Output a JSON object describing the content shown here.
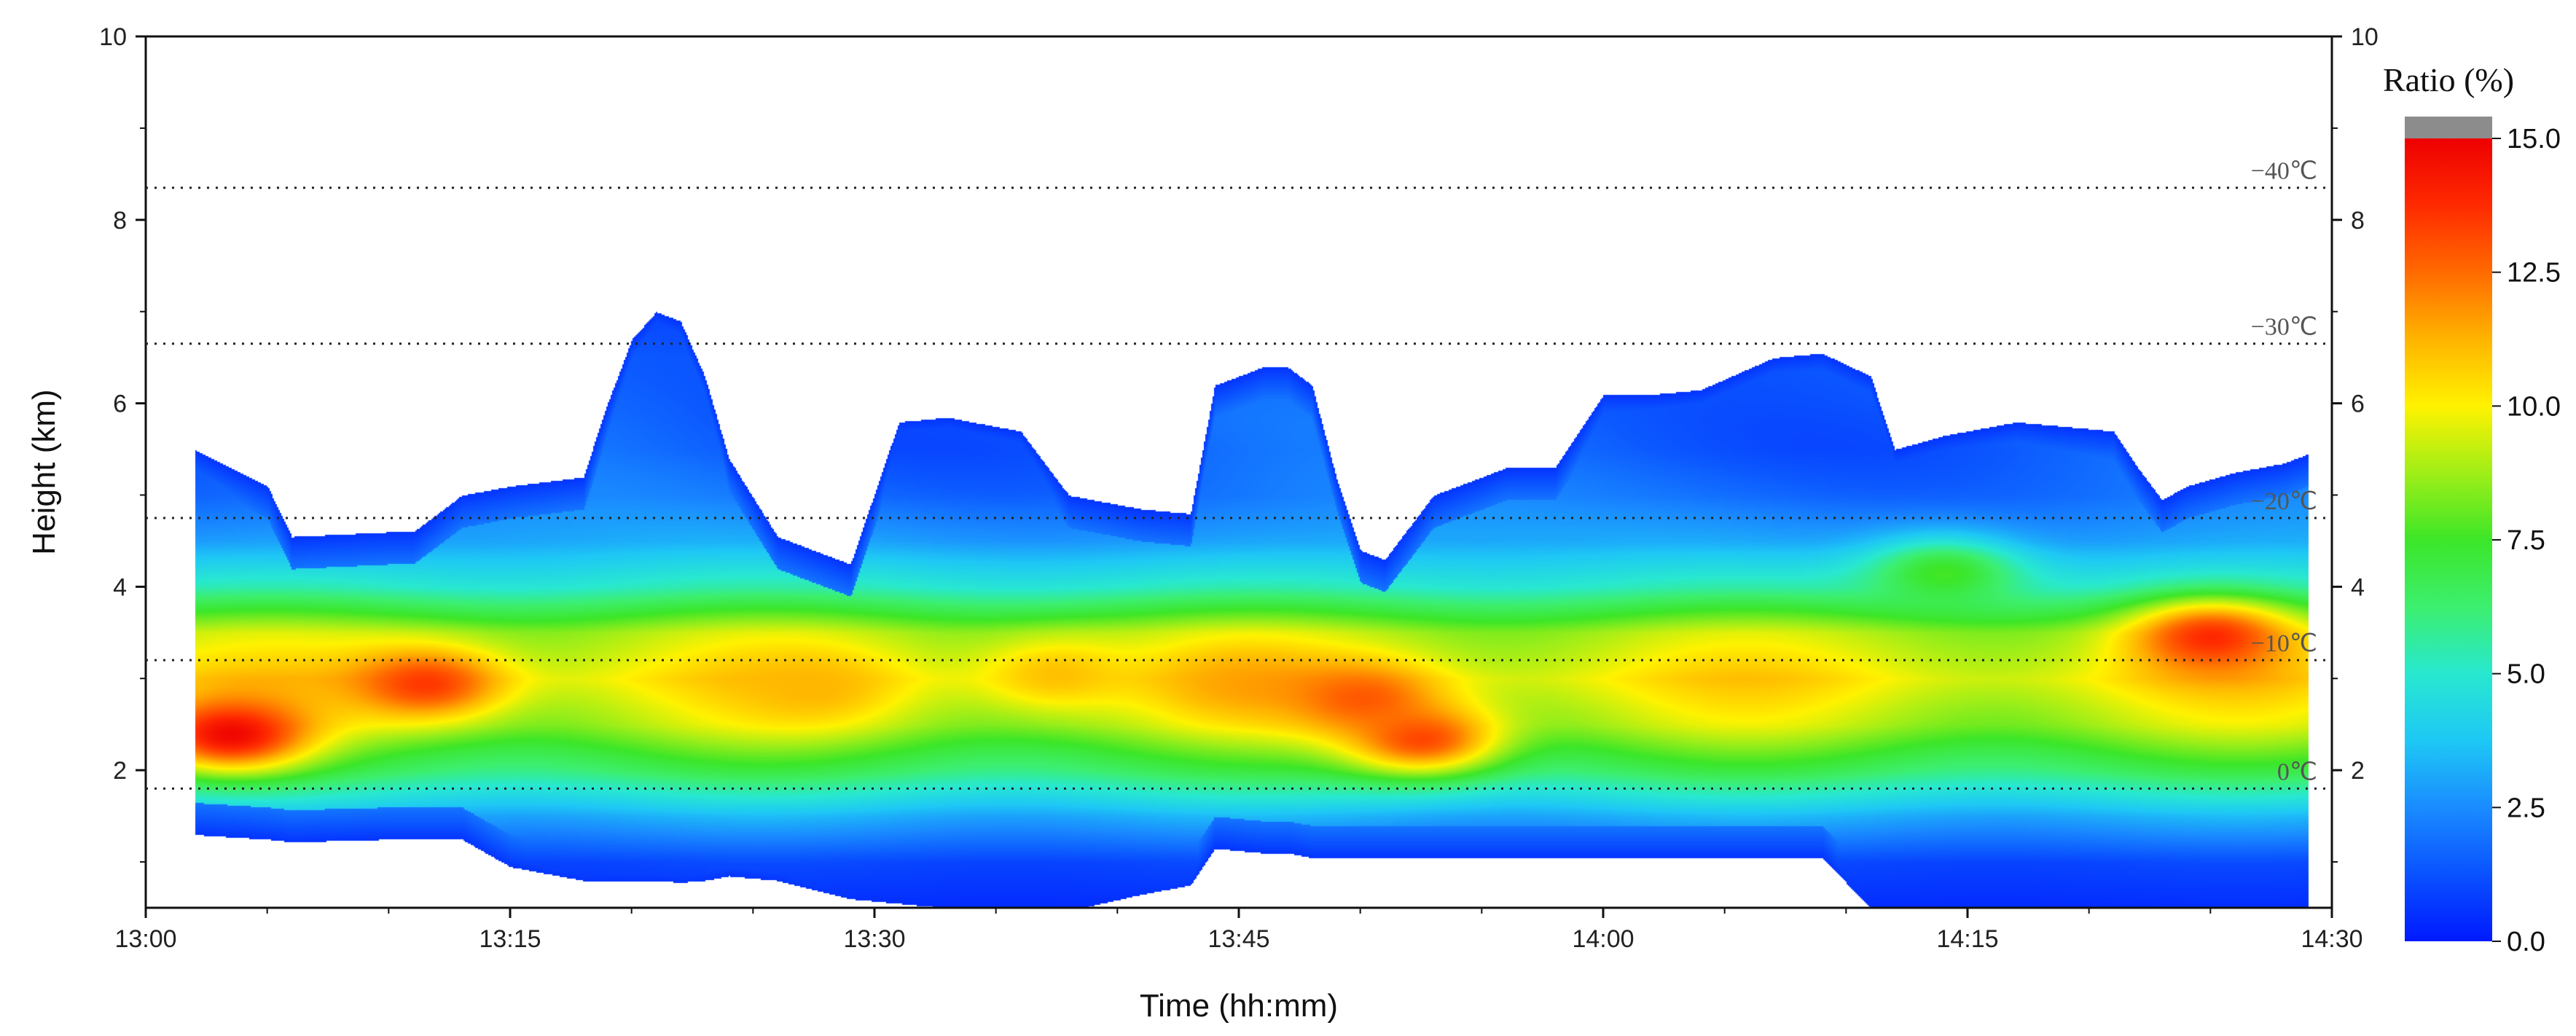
{
  "chart_data": {
    "type": "heatmap",
    "title": "",
    "xlabel": "Time (hh:mm)",
    "ylabel": "Height (km)",
    "xlim_minutes": [
      0,
      90
    ],
    "ylim": [
      0.5,
      10
    ],
    "x_ticks": [
      {
        "minute": 0,
        "label": "13:00"
      },
      {
        "minute": 15,
        "label": "13:15"
      },
      {
        "minute": 30,
        "label": "13:30"
      },
      {
        "minute": 45,
        "label": "13:45"
      },
      {
        "minute": 60,
        "label": "14:00"
      },
      {
        "minute": 75,
        "label": "14:15"
      },
      {
        "minute": 90,
        "label": "14:30"
      }
    ],
    "y_ticks": [
      {
        "value": 2,
        "label": "2"
      },
      {
        "value": 4,
        "label": "4"
      },
      {
        "value": 6,
        "label": "6"
      },
      {
        "value": 8,
        "label": "8"
      },
      {
        "value": 10,
        "label": "10"
      }
    ],
    "right_y_ticks": [
      {
        "value": 2,
        "label": "2"
      },
      {
        "value": 4,
        "label": "4"
      },
      {
        "value": 6,
        "label": "6"
      },
      {
        "value": 8,
        "label": "8"
      },
      {
        "value": 10,
        "label": "10"
      }
    ],
    "isotherms": [
      {
        "height_km": 1.8,
        "label": "0℃"
      },
      {
        "height_km": 3.2,
        "label": "−10℃"
      },
      {
        "height_km": 4.75,
        "label": "−20℃"
      },
      {
        "height_km": 6.65,
        "label": "−30℃"
      },
      {
        "height_km": 8.35,
        "label": "−40℃"
      }
    ],
    "colorbar": {
      "title": "Ratio (%)",
      "min": 0,
      "max": 15,
      "ticks": [
        {
          "value": 0,
          "label": "0.0"
        },
        {
          "value": 2.5,
          "label": "2.5"
        },
        {
          "value": 5,
          "label": "5.0"
        },
        {
          "value": 7.5,
          "label": "7.5"
        },
        {
          "value": 10,
          "label": "10.0"
        },
        {
          "value": 12.5,
          "label": "12.5"
        },
        {
          "value": 15,
          "label": "15.0"
        }
      ],
      "over_color": "#8c8c8c"
    },
    "colormap": [
      "#0019ff",
      "#0a52ff",
      "#1a8cff",
      "#1ec8f5",
      "#28e8d0",
      "#3cef6e",
      "#3ce628",
      "#a0ee18",
      "#fff200",
      "#ffb400",
      "#ff6a00",
      "#ff2a00",
      "#ee0000"
    ],
    "cloud_envelope": {
      "minutes": [
        2,
        5,
        6,
        10,
        11,
        13,
        15,
        18,
        19,
        20,
        21,
        22,
        23,
        24,
        26,
        29,
        31,
        33,
        36,
        38,
        41,
        43,
        44,
        46,
        47,
        48,
        49,
        50,
        51,
        53,
        55,
        56,
        58,
        60,
        62,
        64,
        67,
        69,
        71,
        72,
        74,
        77,
        79,
        81,
        82,
        83,
        84,
        86,
        88,
        89
      ],
      "top_km": [
        5.5,
        5.1,
        4.55,
        4.6,
        4.6,
        5.0,
        5.1,
        5.2,
        6.0,
        6.7,
        7.0,
        6.9,
        6.3,
        5.4,
        4.55,
        4.25,
        5.8,
        5.85,
        5.7,
        5.0,
        4.85,
        4.8,
        6.2,
        6.4,
        6.4,
        6.2,
        5.2,
        4.4,
        4.3,
        5.0,
        5.2,
        5.3,
        5.3,
        6.1,
        6.1,
        6.15,
        6.5,
        6.55,
        6.3,
        5.5,
        5.65,
        5.8,
        5.75,
        5.7,
        5.3,
        4.95,
        5.1,
        5.25,
        5.35,
        5.45
      ],
      "base_km": [
        1.3,
        1.25,
        1.22,
        1.25,
        1.25,
        1.25,
        0.95,
        0.8,
        0.8,
        0.8,
        0.8,
        0.78,
        0.8,
        0.85,
        0.8,
        0.6,
        0.55,
        0.5,
        0.45,
        0.47,
        0.65,
        0.75,
        1.15,
        1.1,
        1.1,
        1.05,
        1.05,
        1.05,
        1.05,
        1.05,
        1.05,
        1.05,
        1.05,
        1.05,
        1.05,
        1.05,
        1.05,
        1.05,
        0.5,
        0.5,
        0.5,
        0.5,
        0.5,
        0.5,
        0.5,
        0.5,
        0.5,
        0.5,
        0.5,
        0.5
      ]
    },
    "ratio_profile": {
      "heights_km": [
        0.5,
        1.0,
        1.5,
        2.0,
        2.5,
        3.0,
        3.5,
        4.0,
        4.5,
        5.0,
        5.5,
        6.0,
        6.5,
        7.0
      ],
      "values_percent": [
        0.4,
        1.0,
        3.2,
        6.5,
        9.0,
        10.2,
        9.0,
        5.2,
        3.0,
        2.0,
        1.6,
        1.6,
        1.5,
        1.0
      ]
    },
    "hotspots": [
      {
        "minute": 3.5,
        "height_km": 2.4,
        "peak_percent": 14.8
      },
      {
        "minute": 11.5,
        "height_km": 2.95,
        "peak_percent": 13.5
      },
      {
        "minute": 27.5,
        "height_km": 2.9,
        "peak_percent": 11.2
      },
      {
        "minute": 37.5,
        "height_km": 3.05,
        "peak_percent": 11.0
      },
      {
        "minute": 45,
        "height_km": 2.95,
        "peak_percent": 11.5
      },
      {
        "minute": 50,
        "height_km": 2.8,
        "peak_percent": 12.8
      },
      {
        "minute": 52.5,
        "height_km": 2.35,
        "peak_percent": 13.2
      },
      {
        "minute": 85,
        "height_km": 3.45,
        "peak_percent": 13.8
      },
      {
        "minute": 74,
        "height_km": 4.15,
        "peak_percent": 7.6
      }
    ]
  }
}
